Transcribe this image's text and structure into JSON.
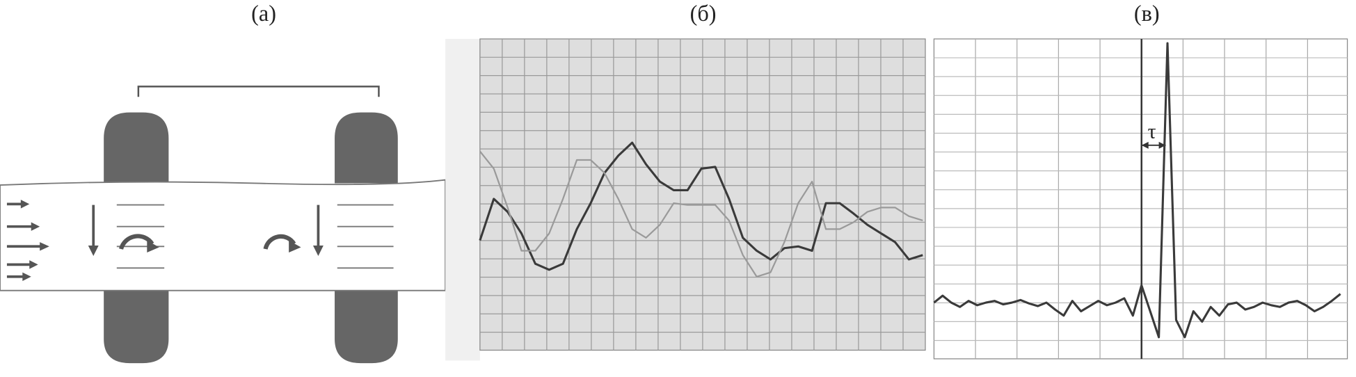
{
  "labels": {
    "a": "(a)",
    "b": "(б)",
    "c": "(в)"
  },
  "tau": "τ",
  "chart_data": [
    {
      "type": "line",
      "ylim": [
        0,
        360
      ],
      "series": [
        {
          "color": "#3a3a3a",
          "values": [
            127,
            175,
            160,
            135,
            100,
            93,
            100,
            140,
            170,
            205,
            225,
            240,
            215,
            195,
            185,
            185,
            210,
            212,
            175,
            130,
            115,
            105,
            118,
            120,
            115,
            170,
            170,
            158,
            145,
            135,
            125,
            105,
            110
          ]
        },
        {
          "color": "#9a9a9a",
          "values": [
            230,
            210,
            165,
            115,
            115,
            135,
            175,
            220,
            220,
            205,
            175,
            140,
            130,
            145,
            170,
            168,
            168,
            168,
            150,
            110,
            85,
            90,
            125,
            170,
            195,
            140,
            140,
            148,
            160,
            165,
            165,
            155,
            150
          ]
        }
      ]
    },
    {
      "type": "line",
      "ylim": [
        -65,
        305
      ],
      "series": [
        {
          "color": "#3a3a3a",
          "values": [
            0,
            8,
            0,
            -5,
            2,
            -3,
            0,
            2,
            -2,
            0,
            3,
            -1,
            -4,
            0,
            -8,
            -15,
            2,
            -10,
            -4,
            2,
            -3,
            0,
            5,
            -15,
            20,
            -10,
            -40,
            300,
            -20,
            -40,
            -10,
            -22,
            -5,
            -15,
            -2,
            0,
            -8,
            -5,
            0,
            -3,
            -5,
            0,
            2,
            -3,
            -10,
            -5,
            2,
            10
          ]
        }
      ]
    }
  ]
}
